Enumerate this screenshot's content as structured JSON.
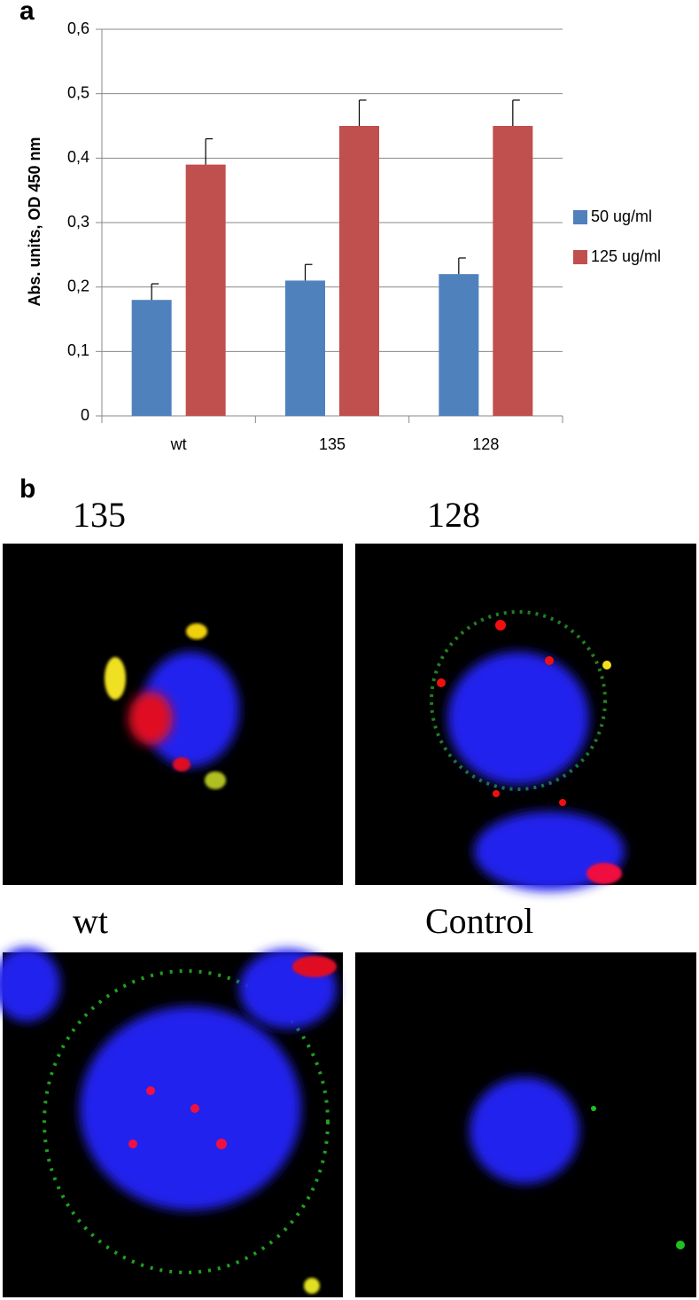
{
  "panel_labels": [
    "a",
    "b"
  ],
  "chart_data": {
    "type": "bar",
    "ylabel": "Abs. units, OD 450 nm",
    "categories": [
      "wt",
      "135",
      "128"
    ],
    "series": [
      {
        "name": "50 ug/ml",
        "color": "#4f81bd",
        "values": [
          0.18,
          0.21,
          0.22
        ],
        "errors": [
          0.025,
          0.025,
          0.025
        ]
      },
      {
        "name": "125 ug/ml",
        "color": "#c0504d",
        "values": [
          0.39,
          0.45,
          0.45
        ],
        "errors": [
          0.04,
          0.04,
          0.04
        ]
      }
    ],
    "ylim": [
      0,
      0.6
    ],
    "yticks": [
      0,
      {
        "value": 0.1,
        "label": "0,1"
      },
      {
        "value": 0.2,
        "label": "0,2"
      },
      {
        "value": 0.3,
        "label": "0,3"
      },
      {
        "value": 0.4,
        "label": "0,4"
      },
      {
        "value": 0.5,
        "label": "0,5"
      },
      {
        "value": 0.6,
        "label": "0,6"
      }
    ],
    "grid": true,
    "legend": "right"
  },
  "images": [
    {
      "label": "135"
    },
    {
      "label": "128"
    },
    {
      "label": "wt"
    },
    {
      "label": "Control"
    }
  ]
}
